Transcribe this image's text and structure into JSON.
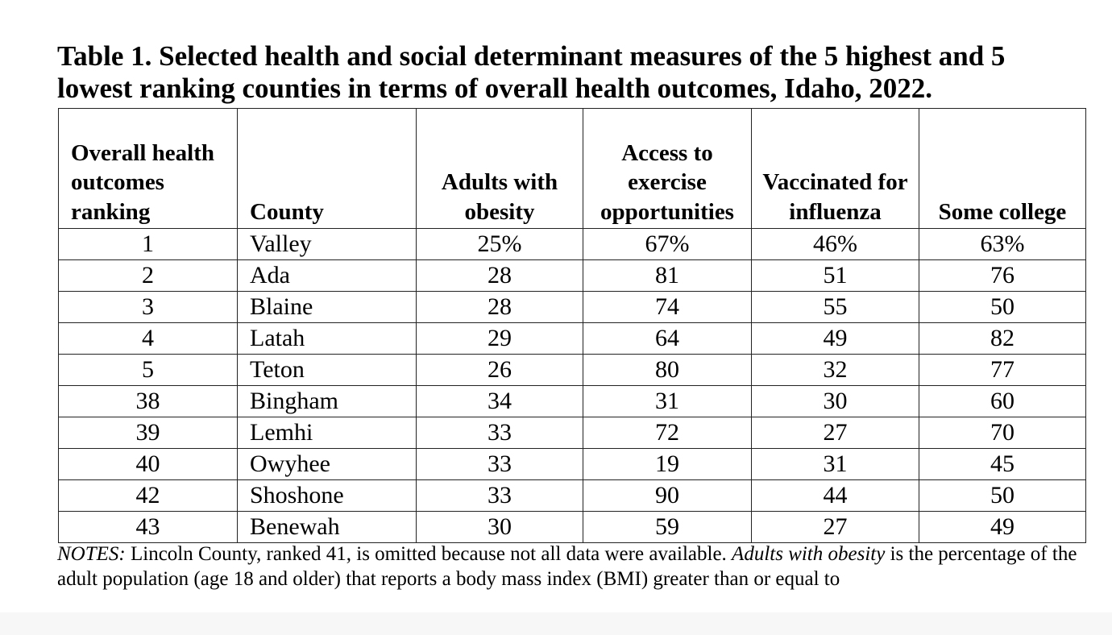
{
  "title": "Table 1.  Selected health and social determinant measures of the 5 highest and 5 lowest ranking counties in terms of overall health outcomes, Idaho, 2022.",
  "table": {
    "headers": [
      "Overall health outcomes ranking",
      "County",
      "Adults with obesity",
      "Access to exercise opportunities",
      "Vaccinated for influenza",
      "Some college"
    ],
    "rows": [
      [
        "1",
        "Valley",
        "25%",
        "67%",
        "46%",
        "63%"
      ],
      [
        "2",
        "Ada",
        "28",
        "81",
        "51",
        "76"
      ],
      [
        "3",
        "Blaine",
        "28",
        "74",
        "55",
        "50"
      ],
      [
        "4",
        "Latah",
        "29",
        "64",
        "49",
        "82"
      ],
      [
        "5",
        "Teton",
        "26",
        "80",
        "32",
        "77"
      ],
      [
        "38",
        "Bingham",
        "34",
        "31",
        "30",
        "60"
      ],
      [
        "39",
        "Lemhi",
        "33",
        "72",
        "27",
        "70"
      ],
      [
        "40",
        "Owyhee",
        "33",
        "19",
        "31",
        "45"
      ],
      [
        "42",
        "Shoshone",
        "33",
        "90",
        "44",
        "50"
      ],
      [
        "43",
        "Benewah",
        "30",
        "59",
        "27",
        "49"
      ]
    ]
  },
  "notes": {
    "label": "NOTES:",
    "part1": " Lincoln County, ranked 41, is omitted because not all data were available.  ",
    "emphasis": "Adults with obesity",
    "part2": " is the percentage of the adult population (age 18 and older) that reports a body mass index (BMI) greater than or equal to"
  }
}
